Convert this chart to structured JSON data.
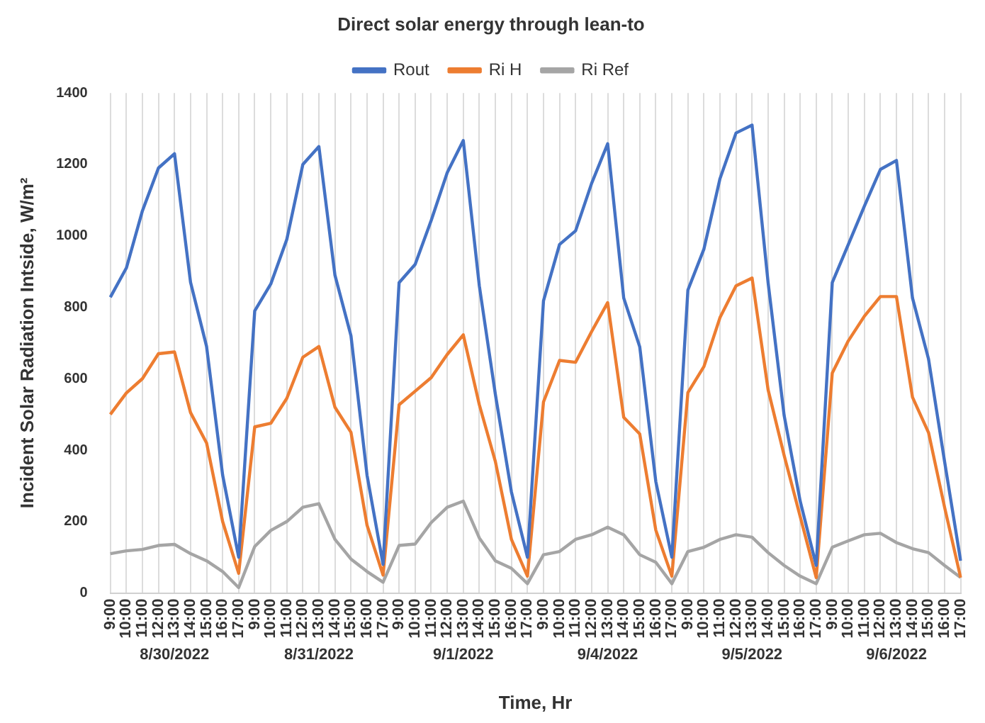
{
  "chart_data": {
    "type": "line",
    "title": "Direct solar energy through lean-to",
    "xlabel": "Time, Hr",
    "ylabel": "Incident Solar Radiation Intside, W/m²",
    "categories": [
      "9:00",
      "10:00",
      "11:00",
      "12:00",
      "13:00",
      "14:00",
      "15:00",
      "16:00",
      "17:00",
      "9:00",
      "10:00",
      "11:00",
      "12:00",
      "13:00",
      "14:00",
      "15:00",
      "16:00",
      "17:00",
      "9:00",
      "10:00",
      "11:00",
      "12:00",
      "13:00",
      "14:00",
      "15:00",
      "16:00",
      "17:00",
      "9:00",
      "10:00",
      "11:00",
      "12:00",
      "13:00",
      "14:00",
      "15:00",
      "16:00",
      "17:00",
      "9:00",
      "10:00",
      "11:00",
      "12:00",
      "13:00",
      "14:00",
      "15:00",
      "16:00",
      "17:00",
      "9:00",
      "10:00",
      "11:00",
      "12:00",
      "13:00",
      "14:00",
      "15:00",
      "16:00",
      "17:00"
    ],
    "annotations": [
      "8/30/2022",
      "8/31/2022",
      "9/1/2022",
      "9/4/2022",
      "9/5/2022",
      "9/6/2022"
    ],
    "series": [
      {
        "name": "Rout",
        "color": "#4472c4",
        "values": [
          828,
          910,
          1070,
          1190,
          1230,
          870,
          690,
          330,
          100,
          790,
          865,
          990,
          1200,
          1250,
          890,
          720,
          330,
          80,
          869,
          920,
          1043,
          1177,
          1267,
          860,
          556,
          283,
          100,
          818,
          976,
          1014,
          1147,
          1258,
          826,
          689,
          312,
          100,
          848,
          963,
          1160,
          1288,
          1310,
          869,
          497,
          257,
          77,
          869,
          976,
          1083,
          1186,
          1211,
          826,
          655,
          368,
          90
        ]
      },
      {
        "name": "Ri H",
        "color": "#ed7d31",
        "values": [
          500,
          560,
          600,
          670,
          675,
          505,
          420,
          200,
          55,
          465,
          475,
          545,
          660,
          690,
          520,
          450,
          190,
          50,
          527,
          565,
          603,
          668,
          723,
          527,
          368,
          150,
          47,
          535,
          651,
          646,
          732,
          813,
          492,
          445,
          176,
          47,
          561,
          634,
          771,
          860,
          882,
          569,
          385,
          214,
          43,
          616,
          706,
          775,
          830,
          830,
          548,
          449,
          240,
          43
        ]
      },
      {
        "name": "Ri Ref",
        "color": "#a5a5a5",
        "values": [
          110,
          118,
          122,
          133,
          136,
          110,
          90,
          60,
          15,
          130,
          175,
          200,
          240,
          250,
          150,
          95,
          60,
          30,
          133,
          137,
          197,
          240,
          257,
          154,
          90,
          69,
          26,
          107,
          116,
          150,
          163,
          184,
          163,
          107,
          86,
          26,
          116,
          128,
          150,
          163,
          156,
          113,
          77,
          47,
          26,
          128,
          146,
          163,
          167,
          141,
          124,
          113,
          77,
          43
        ]
      }
    ],
    "ylim": [
      0,
      1400
    ],
    "yticks": [
      0,
      200,
      400,
      600,
      800,
      1000,
      1200,
      1400
    ],
    "grid": "x",
    "legend": "top",
    "marker": "none",
    "line_style": "solid"
  }
}
